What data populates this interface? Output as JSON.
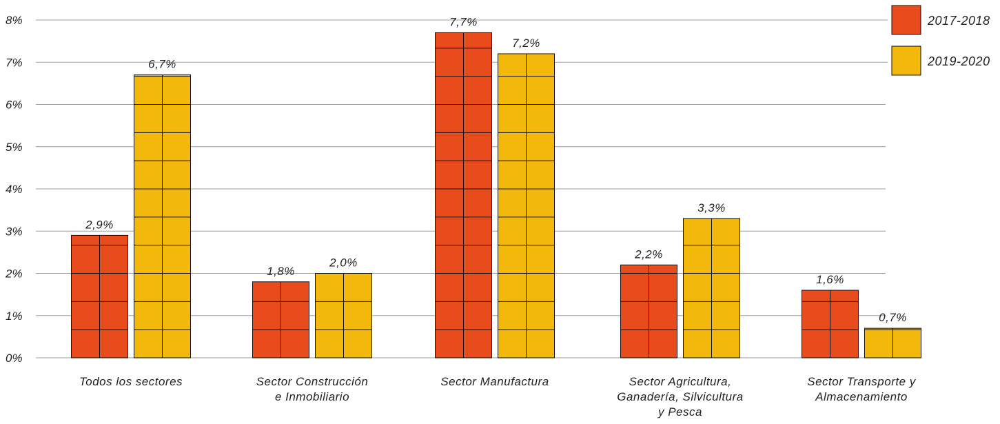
{
  "chart_data": {
    "type": "bar",
    "categories": [
      [
        "Todos los sectores"
      ],
      [
        "Sector Construcción",
        "e Inmobiliario"
      ],
      [
        "Sector Manufactura"
      ],
      [
        "Sector Agricultura,",
        "Ganadería, Silvicultura",
        "y Pesca"
      ],
      [
        "Sector Transporte y",
        "Almacenamiento"
      ]
    ],
    "series": [
      {
        "name": "2017-2018",
        "color": "#e84c1c",
        "values": [
          2.9,
          1.8,
          7.7,
          2.2,
          1.6
        ],
        "labels": [
          "2,9%",
          "1,8%",
          "7,7%",
          "2,2%",
          "1,6%"
        ]
      },
      {
        "name": "2019-2020",
        "color": "#f2b90c",
        "values": [
          6.7,
          2.0,
          7.2,
          3.3,
          0.7
        ],
        "labels": [
          "6,7%",
          "2,0%",
          "7,2%",
          "3,3%",
          "0,7%"
        ]
      }
    ],
    "ylim": [
      0,
      8
    ],
    "yticks": [
      0,
      1,
      2,
      3,
      4,
      5,
      6,
      7,
      8
    ],
    "ytick_labels": [
      "0%",
      "1%",
      "2%",
      "3%",
      "4%",
      "5%",
      "6%",
      "7%",
      "8%"
    ],
    "grid": true,
    "legend_position": "top-right",
    "title": "",
    "xlabel": "",
    "ylabel": ""
  }
}
